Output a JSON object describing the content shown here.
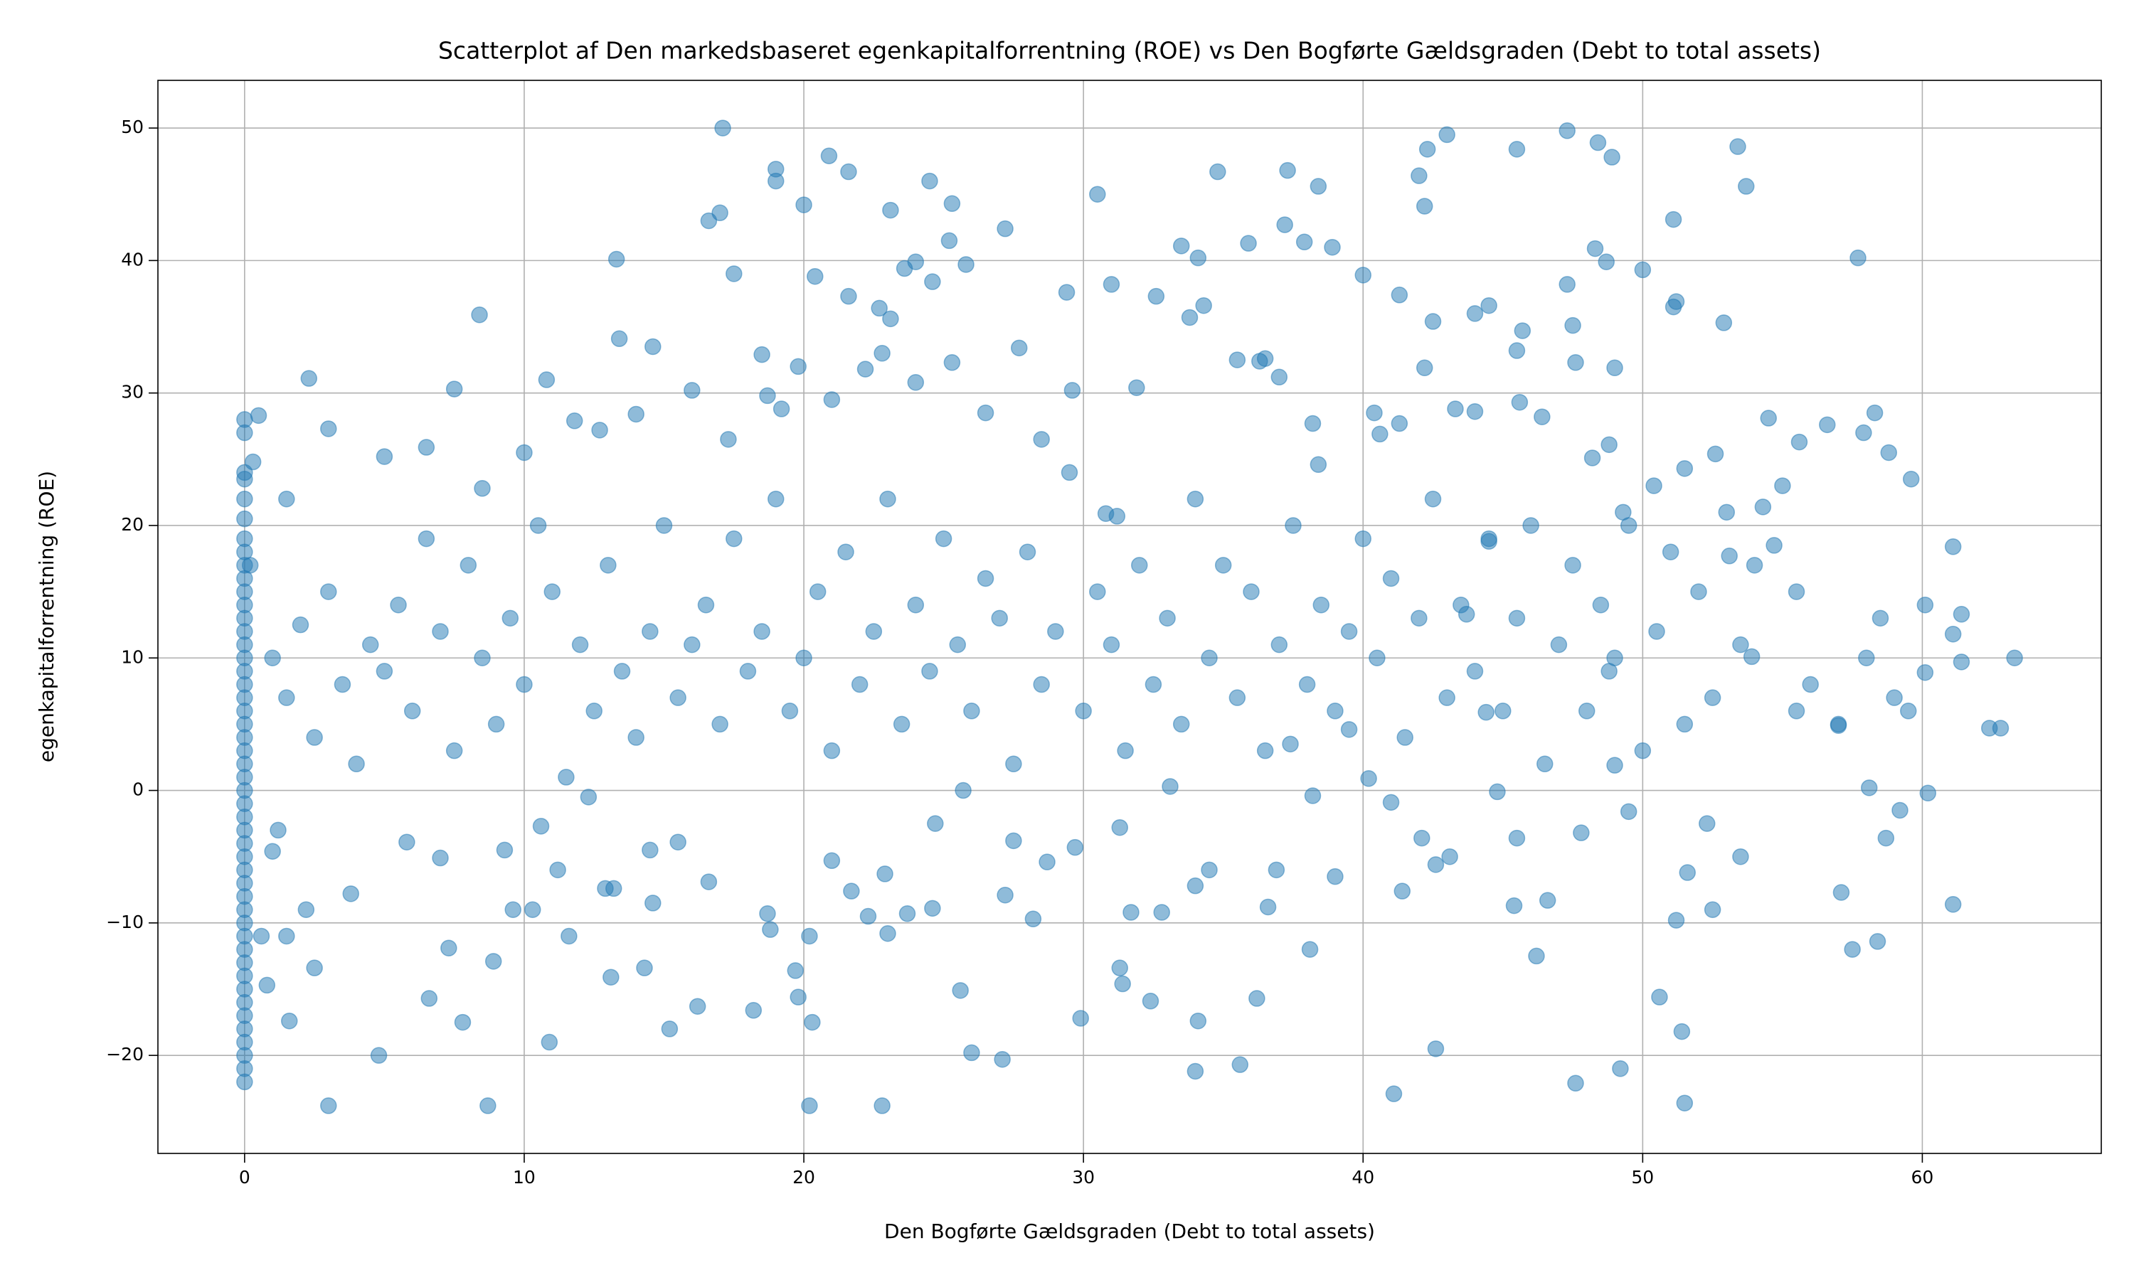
{
  "chart_data": {
    "type": "scatter",
    "title": "Scatterplot af Den markedsbaseret egenkapitalforrentning (ROE) vs Den Bogførte Gældsgraden (Debt to total assets)",
    "xlabel": "Den Bogførte Gældsgraden (Debt to total assets)",
    "ylabel": "egenkapitalforrentning (ROE)",
    "color": "#1f77b4",
    "grid": true,
    "xlim": [
      -3.1,
      66.4
    ],
    "ylim": [
      -27.4,
      53.6
    ],
    "xticks": [
      0,
      10,
      20,
      30,
      40,
      50,
      60
    ],
    "yticks": [
      {
        "value": -20,
        "label": "−20"
      },
      {
        "value": -10,
        "label": "−10"
      },
      0,
      10,
      20,
      30,
      40,
      50
    ],
    "x": [
      0,
      0,
      0,
      0,
      0,
      0,
      0,
      0,
      0,
      0,
      0,
      0,
      0,
      0,
      0,
      0,
      0,
      0,
      0,
      0,
      0,
      0,
      0,
      0,
      0,
      0,
      0,
      0,
      0,
      0,
      0,
      0,
      0,
      0,
      0,
      0,
      0,
      0,
      0,
      0,
      0,
      0,
      0,
      0,
      0,
      0,
      0,
      0,
      0.3,
      0.5,
      0.2,
      17.1,
      20.9,
      21.6,
      19,
      19,
      24.5,
      25.3,
      20,
      16.6,
      17,
      23.1,
      27.2,
      25.2,
      34.8,
      37.3,
      38.4,
      42.3,
      43,
      42,
      45.5,
      47.3,
      48.4,
      48.9,
      53.4,
      53.7,
      51.1,
      42.2,
      37.2,
      37.9,
      38.9,
      35.9,
      33.5,
      34.1,
      40,
      41.3,
      44,
      44.5,
      48.3,
      48.7,
      47.3,
      50,
      51.2,
      51.1,
      52.9,
      57.7,
      8.4,
      13.3,
      13.4,
      16,
      17.5,
      18.5,
      20.4,
      21.6,
      22.7,
      23.1,
      23.6,
      24,
      24.6,
      25.8,
      29.4,
      31,
      32.6,
      34.3,
      33.8,
      31.9,
      30.5,
      7.5,
      2.3,
      3,
      1.5,
      5,
      6.5,
      8.5,
      10,
      10.8,
      11.8,
      12.7,
      14,
      14.6,
      17.3,
      18.7,
      19.2,
      19.8,
      21,
      22.2,
      22.8,
      24,
      25.3,
      26.5,
      27.7,
      28.5,
      29.6,
      30.8,
      31.2,
      35.5,
      36.3,
      37,
      36.5,
      38.2,
      38.4,
      40.4,
      40.6,
      41.3,
      42.5,
      42.2,
      43.3,
      44,
      44.5,
      45.5,
      45.7,
      45.6,
      46.4,
      47.5,
      47.6,
      48.2,
      48.8,
      49,
      49.3,
      50.4,
      51.5,
      52.6,
      53.1,
      54.5,
      55.6,
      56.6,
      57.9,
      58.3,
      58.8,
      59.6,
      60.1,
      61.1,
      61.4,
      62.4,
      62.8,
      63.3,
      61.4,
      61.1,
      60.1,
      60.2,
      61.1,
      59.2,
      58.7,
      58.4,
      58.1,
      57.5,
      57.1,
      57,
      55.5,
      54.7,
      54.3,
      53.9,
      53.5,
      52.5,
      52.3,
      51.6,
      51.5,
      51.4,
      51.2,
      50.6,
      49.2,
      49.5,
      49,
      48.8,
      47.8,
      47.6,
      46.6,
      46.2,
      45.4,
      45.5,
      44.8,
      44.4,
      43.7,
      43.1,
      42.6,
      42.6,
      42.1,
      41.4,
      41.1,
      41,
      40.2,
      39.5,
      39,
      38.1,
      38.2,
      37.4,
      36.9,
      36.6,
      36.2,
      35.6,
      34.5,
      34.1,
      34,
      34,
      33.1,
      32.4,
      32.8,
      31.7,
      31.3,
      31.4,
      31.3,
      29.9,
      29.7,
      28.7,
      28.2,
      27.5,
      27.2,
      27.1,
      26,
      25.6,
      25.7,
      24.6,
      24.7,
      23.7,
      23,
      22.8,
      22.9,
      22.3,
      21.7,
      21,
      20.3,
      20.2,
      20.2,
      19.8,
      19.7,
      18.8,
      18.2,
      16.2,
      15.2,
      14.3,
      13.1,
      10.9,
      11.6,
      12.9,
      8.7,
      8.9,
      7.8,
      7.3,
      6.6,
      4.8,
      3,
      2.5,
      1.6,
      1.5,
      2.2,
      3.8,
      5.8,
      7,
      9.3,
      9.6,
      10.3,
      11.2,
      10.6,
      13.2,
      14.5,
      14.6,
      12.3,
      16.6,
      18.7,
      15.5,
      0.8,
      0.6,
      1,
      1.2,
      1,
      1.5,
      2,
      2.5,
      3,
      3.5,
      4,
      4.5,
      5,
      5.5,
      6,
      6.5,
      7,
      7.5,
      8,
      8.5,
      9,
      9.5,
      10,
      10.5,
      11,
      11.5,
      12,
      12.5,
      13,
      13.5,
      14,
      14.5,
      15,
      15.5,
      16,
      16.5,
      17,
      17.5,
      18,
      18.5,
      19,
      19.5,
      20,
      20.5,
      21,
      21.5,
      22,
      22.5,
      23,
      23.5,
      24,
      24.5,
      25,
      25.5,
      26,
      26.5,
      27,
      27.5,
      28,
      28.5,
      29,
      29.5,
      30,
      30.5,
      31,
      31.5,
      32,
      32.5,
      33,
      33.5,
      34,
      34.5,
      35,
      35.5,
      36,
      36.5,
      37,
      37.5,
      38,
      38.5,
      39,
      39.5,
      40,
      40.5,
      41,
      41.5,
      42,
      42.5,
      43,
      43.5,
      44,
      44.5,
      45,
      45.5,
      46,
      46.5,
      47,
      47.5,
      48,
      48.5,
      49,
      49.5,
      50,
      50.5,
      51,
      51.5,
      52,
      52.5,
      53,
      53.5,
      54,
      55,
      55.5,
      56,
      57,
      58,
      58.5,
      59,
      59.5
    ],
    "values": [
      28,
      27,
      24,
      23.5,
      22,
      20.5,
      19,
      18,
      17,
      16,
      15,
      14,
      13,
      12,
      11,
      10,
      9,
      8,
      7,
      6,
      5,
      4,
      3,
      2,
      1,
      0,
      -1,
      -2,
      -3,
      -4,
      -5,
      -6,
      -7,
      -8,
      -9,
      -10,
      -11,
      -12,
      -13,
      -14,
      -15,
      -16,
      -17,
      -18,
      -19,
      -20,
      -21,
      -22,
      24.8,
      28.3,
      17,
      50,
      47.9,
      46.7,
      46.9,
      46,
      46,
      44.3,
      44.2,
      43,
      43.6,
      43.8,
      42.4,
      41.5,
      46.7,
      46.8,
      45.6,
      48.4,
      49.5,
      46.4,
      48.4,
      49.8,
      48.9,
      47.8,
      48.6,
      45.6,
      43.1,
      44.1,
      42.7,
      41.4,
      41,
      41.3,
      41.1,
      40.2,
      38.9,
      37.4,
      36,
      36.6,
      40.9,
      39.9,
      38.2,
      39.3,
      36.9,
      36.5,
      35.3,
      40.2,
      35.9,
      40.1,
      34.1,
      30.2,
      39,
      32.9,
      38.8,
      37.3,
      36.4,
      35.6,
      39.4,
      39.9,
      38.4,
      39.7,
      37.6,
      38.2,
      37.3,
      36.6,
      35.7,
      30.4,
      45,
      30.3,
      31.1,
      27.3,
      22,
      25.2,
      25.9,
      22.8,
      25.5,
      31,
      27.9,
      27.2,
      28.4,
      33.5,
      26.5,
      29.8,
      28.8,
      32,
      29.5,
      31.8,
      33,
      30.8,
      32.3,
      28.5,
      33.4,
      26.5,
      30.2,
      20.9,
      20.7,
      32.5,
      32.4,
      31.2,
      32.6,
      27.7,
      24.6,
      28.5,
      26.9,
      27.7,
      35.4,
      31.9,
      28.8,
      28.6,
      18.8,
      33.2,
      34.7,
      29.3,
      28.2,
      35.1,
      32.3,
      25.1,
      26.1,
      31.9,
      21,
      23,
      24.3,
      25.4,
      17.7,
      28.1,
      26.3,
      27.6,
      27,
      28.5,
      25.5,
      23.5,
      14,
      18.4,
      13.3,
      4.7,
      4.7,
      10,
      9.7,
      11.8,
      8.9,
      -0.2,
      -8.6,
      -1.5,
      -3.6,
      -11.4,
      0.2,
      -12,
      -7.7,
      4.9,
      6,
      18.5,
      21.4,
      10.1,
      -5,
      -9,
      -2.5,
      -6.2,
      -23.6,
      -18.2,
      -9.8,
      -15.6,
      -21,
      -1.6,
      1.9,
      9,
      -3.2,
      -22.1,
      -8.3,
      -12.5,
      -8.7,
      -3.6,
      -0.1,
      5.9,
      13.3,
      -5,
      -19.5,
      -5.6,
      -3.6,
      -7.6,
      -22.9,
      -0.9,
      0.9,
      4.6,
      -6.5,
      -12,
      -0.4,
      3.5,
      -6,
      -8.8,
      -15.7,
      -20.7,
      -6,
      -17.4,
      -21.2,
      -7.2,
      0.3,
      -15.9,
      -9.2,
      -9.2,
      -13.4,
      -14.6,
      -2.8,
      -17.2,
      -4.3,
      -5.4,
      -9.7,
      -3.8,
      -7.9,
      -20.3,
      -19.8,
      -15.1,
      0,
      -8.9,
      -2.5,
      -9.3,
      -10.8,
      -23.8,
      -6.3,
      -9.5,
      -7.6,
      -5.3,
      -17.5,
      -11,
      -23.8,
      -15.6,
      -13.6,
      -10.5,
      -16.6,
      -16.3,
      -18,
      -13.4,
      -14.1,
      -19,
      -11,
      -7.4,
      -23.8,
      -12.9,
      -17.5,
      -11.9,
      -15.7,
      -20,
      -23.8,
      -13.4,
      -17.4,
      -11,
      -9,
      -7.8,
      -3.9,
      -5.1,
      -4.5,
      -9,
      -9,
      -6,
      -2.7,
      -7.4,
      -4.5,
      -8.5,
      -0.5,
      -6.9,
      -9.3,
      -3.9,
      -14.7,
      -11,
      -4.6,
      -3,
      10,
      7,
      12.5,
      4,
      15,
      8,
      2,
      11,
      9,
      14,
      6,
      19,
      12,
      3,
      17,
      10,
      5,
      13,
      8,
      20,
      15,
      1,
      11,
      6,
      17,
      9,
      4,
      12,
      20,
      7,
      11,
      14,
      5,
      19,
      9,
      12,
      22,
      6,
      10,
      15,
      3,
      18,
      8,
      12,
      22,
      5,
      14,
      9,
      19,
      11,
      6,
      16,
      13,
      2,
      18,
      8,
      12,
      24,
      6,
      15,
      11,
      3,
      17,
      8,
      13,
      5,
      22,
      10,
      17,
      7,
      15,
      3,
      11,
      20,
      8,
      14,
      6,
      12,
      19,
      10,
      16,
      4,
      13,
      22,
      7,
      14,
      9,
      19,
      6,
      13,
      20,
      2,
      11,
      17,
      6,
      14,
      10,
      20,
      3,
      12,
      18,
      5,
      15,
      7,
      21,
      11,
      17,
      23,
      15,
      8,
      5,
      10,
      13,
      7,
      6
    ]
  }
}
